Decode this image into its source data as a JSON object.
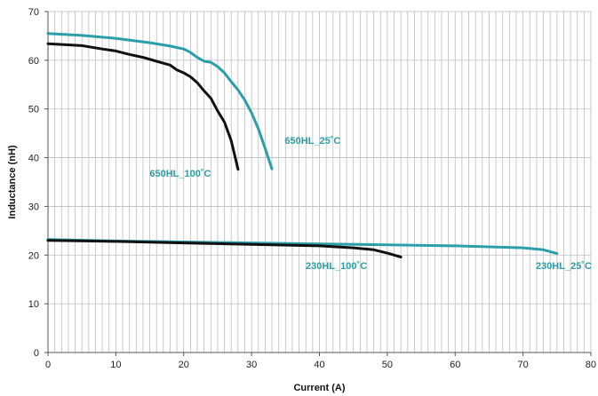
{
  "chart_data": {
    "type": "line",
    "title": "",
    "xlabel": "Current (A)",
    "ylabel": "Inductance (nH)",
    "xlim": [
      0,
      80
    ],
    "ylim": [
      0,
      70
    ],
    "x_ticks": [
      0,
      10,
      20,
      30,
      40,
      50,
      60,
      70,
      80
    ],
    "y_ticks": [
      0,
      10,
      20,
      30,
      40,
      50,
      60,
      70
    ],
    "grid": {
      "vertical_step": 1,
      "horizontal_step": 10
    },
    "colors": {
      "teal": "#2a9fa8",
      "black": "#111111",
      "grid": "#bdbdbd"
    },
    "series": [
      {
        "name": "650HL_25˚C",
        "color": "#2a9fa8",
        "points": [
          [
            0,
            65.5
          ],
          [
            5,
            65.1
          ],
          [
            10,
            64.5
          ],
          [
            15,
            63.6
          ],
          [
            18,
            62.9
          ],
          [
            20,
            62.3
          ],
          [
            21,
            61.6
          ],
          [
            22,
            60.6
          ],
          [
            23,
            59.8
          ],
          [
            24,
            59.6
          ],
          [
            25,
            58.7
          ],
          [
            26,
            57.4
          ],
          [
            27,
            55.6
          ],
          [
            28,
            53.9
          ],
          [
            29,
            51.8
          ],
          [
            30,
            49.2
          ],
          [
            31,
            45.9
          ],
          [
            32,
            41.9
          ],
          [
            33,
            37.7
          ]
        ]
      },
      {
        "name": "650HL_100˚C",
        "color": "#111111",
        "points": [
          [
            0,
            63.4
          ],
          [
            5,
            63.0
          ],
          [
            8,
            62.3
          ],
          [
            10,
            61.9
          ],
          [
            12,
            61.2
          ],
          [
            14,
            60.6
          ],
          [
            16,
            59.8
          ],
          [
            18,
            59.0
          ],
          [
            19,
            58.0
          ],
          [
            20,
            57.4
          ],
          [
            21,
            56.6
          ],
          [
            22,
            55.4
          ],
          [
            23,
            53.7
          ],
          [
            24,
            52.2
          ],
          [
            25,
            49.6
          ],
          [
            26,
            47.3
          ],
          [
            27,
            43.5
          ],
          [
            28,
            37.6
          ]
        ]
      },
      {
        "name": "230HL_25˚C",
        "color": "#2a9fa8",
        "points": [
          [
            0,
            23.2
          ],
          [
            10,
            22.9
          ],
          [
            20,
            22.7
          ],
          [
            30,
            22.5
          ],
          [
            40,
            22.3
          ],
          [
            50,
            22.1
          ],
          [
            60,
            21.9
          ],
          [
            70,
            21.5
          ],
          [
            73,
            21.1
          ],
          [
            75,
            20.3
          ]
        ]
      },
      {
        "name": "230HL_100˚C",
        "color": "#111111",
        "points": [
          [
            0,
            23.0
          ],
          [
            10,
            22.8
          ],
          [
            20,
            22.5
          ],
          [
            30,
            22.2
          ],
          [
            40,
            21.9
          ],
          [
            45,
            21.5
          ],
          [
            48,
            21.1
          ],
          [
            50,
            20.4
          ],
          [
            52,
            19.6
          ]
        ]
      }
    ],
    "annotations": [
      {
        "text": "650HL_25˚C",
        "x": 39,
        "y": 42.8,
        "color": "#2a9fa8"
      },
      {
        "text": "650HL_100˚C",
        "x": 19.5,
        "y": 36.1,
        "color": "#2a9fa8"
      },
      {
        "text": "230HL_100˚C",
        "x": 42.5,
        "y": 17.1,
        "color": "#2a9fa8"
      },
      {
        "text": "230HL_25˚C",
        "x": 76,
        "y": 17.1,
        "color": "#2a9fa8"
      }
    ]
  }
}
